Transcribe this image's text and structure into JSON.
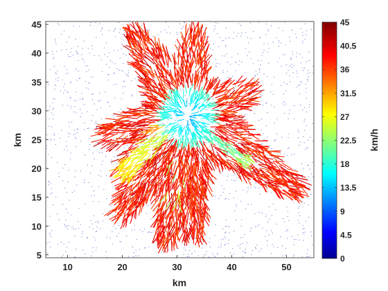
{
  "chart_data": {
    "type": "quiver-field",
    "title": "",
    "xlabel": "km",
    "ylabel": "km",
    "xlim": [
      6,
      55
    ],
    "ylim": [
      4.5,
      45.5
    ],
    "xticks": [
      10,
      20,
      30,
      40,
      50
    ],
    "yticks": [
      5,
      10,
      15,
      20,
      25,
      30,
      35,
      40,
      45
    ],
    "grid": false,
    "colorbar": {
      "label": "km/h",
      "colormap": "jet",
      "range": [
        0,
        45
      ],
      "ticks": [
        0,
        4.5,
        9,
        13.5,
        18,
        22.5,
        27,
        31.5,
        36,
        40.5,
        45
      ]
    },
    "wind_field": {
      "center": [
        32,
        29
      ],
      "center_speed": 13,
      "outer_speed": 40,
      "arms": [
        {
          "tip": [
            23,
            42
          ],
          "speed": 40
        },
        {
          "tip": [
            33,
            42
          ],
          "speed": 40
        },
        {
          "tip": [
            42,
            33
          ],
          "speed": 40
        },
        {
          "tip": [
            51,
            17
          ],
          "speed": 40
        },
        {
          "tip": [
            33,
            10
          ],
          "speed": 40
        },
        {
          "tip": [
            28,
            9
          ],
          "speed": 40
        },
        {
          "tip": [
            20,
            13
          ],
          "speed": 40
        },
        {
          "tip": [
            18,
            26
          ],
          "speed": 38
        },
        {
          "tip": [
            21,
            20
          ],
          "speed": 20
        },
        {
          "tip": [
            29,
            14
          ],
          "speed": 16
        },
        {
          "tip": [
            43,
            22
          ],
          "speed": 15
        },
        {
          "tip": [
            26,
            27
          ],
          "speed": 24
        }
      ]
    },
    "background_markers": {
      "color": "#1f3fbf",
      "speed": 0
    }
  }
}
